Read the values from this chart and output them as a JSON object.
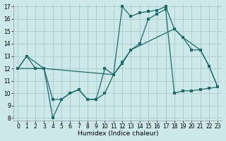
{
  "xlabel": "Humidex (Indice chaleur)",
  "bg_color": "#cde8e8",
  "grid_color": "#aacccc",
  "line_color": "#1b6b6b",
  "series1_x": [
    0,
    1,
    3,
    11,
    12,
    13,
    18,
    19,
    21,
    22,
    23
  ],
  "series1_y": [
    12,
    13,
    12,
    11.5,
    12.5,
    13.5,
    15.2,
    14.5,
    13.5,
    12.2,
    10.5
  ],
  "series2_x": [
    0,
    1,
    2,
    3,
    4,
    5,
    6,
    7,
    8,
    9,
    10,
    11,
    12,
    13,
    14,
    15,
    16,
    17,
    18,
    19,
    20,
    21,
    22,
    23
  ],
  "series2_y": [
    12,
    13,
    12,
    12,
    8,
    9.5,
    10,
    10.3,
    9.5,
    9.5,
    12,
    11.5,
    17,
    16.2,
    16.5,
    16.6,
    16.7,
    17.0,
    15.2,
    14.5,
    13.5,
    13.5,
    12.2,
    10.5
  ],
  "series3_x": [
    0,
    3,
    4,
    5,
    6,
    7,
    8,
    9,
    10,
    11,
    12,
    13,
    14,
    15,
    16,
    17,
    18,
    19,
    20,
    21,
    22,
    23
  ],
  "series3_y": [
    12,
    12,
    9.5,
    9.5,
    10,
    10.3,
    9.5,
    9.5,
    10,
    11.5,
    12.4,
    13.5,
    14.0,
    16.0,
    16.4,
    16.8,
    10.0,
    10.2,
    10.2,
    10.3,
    10.4,
    10.5
  ],
  "ylim_min": 8,
  "ylim_max": 17,
  "yticks": [
    8,
    9,
    10,
    11,
    12,
    13,
    14,
    15,
    16,
    17
  ],
  "xticks": [
    0,
    1,
    2,
    3,
    4,
    5,
    6,
    7,
    8,
    9,
    10,
    11,
    12,
    13,
    14,
    15,
    16,
    17,
    18,
    19,
    20,
    21,
    22,
    23
  ],
  "tick_fontsize": 5.5,
  "xlabel_fontsize": 6.5,
  "marker_size": 2.2,
  "line_width": 0.9
}
